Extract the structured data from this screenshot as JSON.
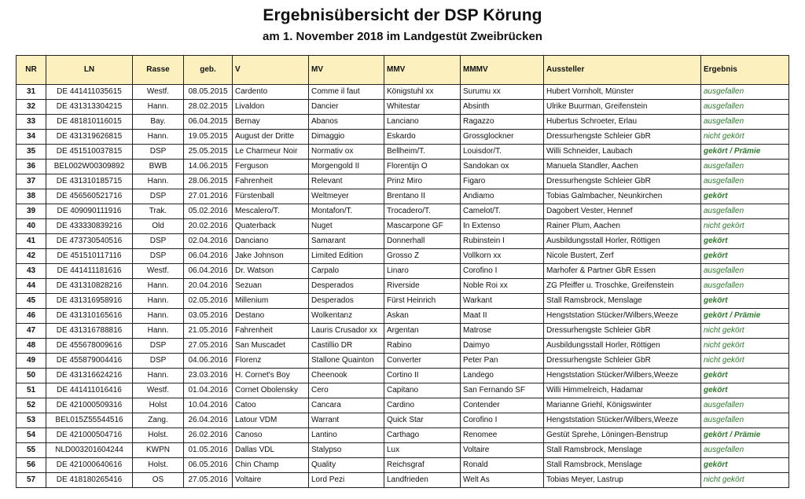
{
  "title": "Ergebnisübersicht der DSP Körung",
  "subtitle": "am 1. November 2018 im Landgestüt Zweibrücken",
  "accent_colors": {
    "header_fill": "#fdf0bf",
    "result_text": "#2e7a2e"
  },
  "columns": [
    "NR",
    "LN",
    "Rasse",
    "geb.",
    "V",
    "MV",
    "MMV",
    "MMMV",
    "Aussteller",
    "Ergebnis"
  ],
  "rows": [
    [
      "31",
      "DE 441411035615",
      "Westf.",
      "08.05.2015",
      "Cardento",
      "Comme il faut",
      "Königstuhl xx",
      "Surumu xx",
      "Hubert Vornholt, Münster",
      "ausgefallen"
    ],
    [
      "32",
      "DE 431313304215",
      "Hann.",
      "28.02.2015",
      "Livaldon",
      "Dancier",
      "Whitestar",
      "Absinth",
      "Ulrike Buurman, Greifenstein",
      "ausgefallen"
    ],
    [
      "33",
      "DE 481810116015",
      "Bay.",
      "06.04.2015",
      "Bernay",
      "Abanos",
      "Lanciano",
      "Ragazzo",
      "Hubertus Schroeter, Erlau",
      "ausgefallen"
    ],
    [
      "34",
      "DE 431319626815",
      "Hann.",
      "19.05.2015",
      "August der Dritte",
      "Dimaggio",
      "Eskardo",
      "Grossglockner",
      "Dressurhengste Schleier GbR",
      "nicht gekört"
    ],
    [
      "35",
      "DE 451510037815",
      "DSP",
      "25.05.2015",
      "Le Charmeur Noir",
      "Normativ ox",
      "Bellheim/T.",
      "Louisdor/T.",
      "Willi Schneider, Laubach",
      "gekört / Prämie"
    ],
    [
      "36",
      "BEL002W00309892",
      "BWB",
      "14.06.2015",
      "Ferguson",
      "Morgengold II",
      "Florentijn O",
      "Sandokan ox",
      "Manuela Standler, Aachen",
      "ausgefallen"
    ],
    [
      "37",
      "DE 431310185715",
      "Hann.",
      "28.06.2015",
      "Fahrenheit",
      "Relevant",
      "Prinz Miro",
      "Figaro",
      "Dressurhengste Schleier GbR",
      "ausgefallen"
    ],
    [
      "38",
      "DE 456560521716",
      "DSP",
      "27.01.2016",
      "Fürstenball",
      "Weltmeyer",
      "Brentano II",
      "Andiamo",
      "Tobias Galmbacher, Neunkirchen",
      "gekört"
    ],
    [
      "39",
      "DE 409090111916",
      "Trak.",
      "05.02.2016",
      "Mescalero/T.",
      "Montafon/T.",
      "Trocadero/T.",
      "Camelot/T.",
      "Dagobert Vester, Hennef",
      "ausgefallen"
    ],
    [
      "40",
      "DE 433330839216",
      "Old",
      "20.02.2016",
      "Quaterback",
      "Nuget",
      "Mascarpone GF",
      "In Extenso",
      "Rainer Plum, Aachen",
      "nicht gekört"
    ],
    [
      "41",
      "DE 473730540516",
      "DSP",
      "02.04.2016",
      "Danciano",
      "Samarant",
      "Donnerhall",
      "Rubinstein I",
      "Ausbildungsstall Horler, Röttigen",
      "gekört"
    ],
    [
      "42",
      "DE 451510117116",
      "DSP",
      "06.04.2016",
      "Jake Johnson",
      "Limited Edition",
      "Grosso Z",
      "Vollkorn xx",
      "Nicole Bustert, Zerf",
      "gekört"
    ],
    [
      "43",
      "DE 441411181616",
      "Westf.",
      "06.04.2016",
      "Dr. Watson",
      "Carpalo",
      "Linaro",
      "Corofino I",
      "Marhofer & Partner GbR Essen",
      "ausgefallen"
    ],
    [
      "44",
      "DE 431310828216",
      "Hann.",
      "20.04.2016",
      "Sezuan",
      "Desperados",
      "Riverside",
      "Noble Roi xx",
      "ZG Pfeiffer u. Troschke, Greifenstein",
      "ausgefallen"
    ],
    [
      "45",
      "DE 431316958916",
      "Hann.",
      "02.05.2016",
      "Millenium",
      "Desperados",
      "Fürst Heinrich",
      "Warkant",
      "Stall Ramsbrock, Menslage",
      "gekört"
    ],
    [
      "46",
      "DE 431310165616",
      "Hann.",
      "03.05.2016",
      "Destano",
      "Wolkentanz",
      "Askan",
      "Maat II",
      "Hengststation Stücker/Wilbers,Weeze",
      "gekört / Prämie"
    ],
    [
      "47",
      "DE 431316788816",
      "Hann.",
      "21.05.2016",
      "Fahrenheit",
      "Lauris Crusador xx",
      "Argentan",
      "Matrose",
      "Dressurhengste Schleier GbR",
      "nicht gekört"
    ],
    [
      "48",
      "DE 455678009616",
      "DSP",
      "27.05.2016",
      "San Muscadet",
      "Castillio DR",
      "Rabino",
      "Daimyo",
      "Ausbildungsstall Horler, Röttigen",
      "nicht gekört"
    ],
    [
      "49",
      "DE 455879004416",
      "DSP",
      "04.06.2016",
      "Florenz",
      "Stallone Quainton",
      "Converter",
      "Peter Pan",
      "Dressurhengste Schleier GbR",
      "nicht gekört"
    ],
    [
      "50",
      "DE 431316624216",
      "Hann.",
      "23.03.2016",
      "H. Cornet's Boy",
      "Cheenook",
      "Cortino II",
      "Landego",
      "Hengststation Stücker/Wilbers,Weeze",
      "gekört"
    ],
    [
      "51",
      "DE 441411016416",
      "Westf.",
      "01.04.2016",
      "Cornet Obolensky",
      "Cero",
      "Capitano",
      "San Fernando SF",
      "Willi Himmelreich, Hadamar",
      "gekört"
    ],
    [
      "52",
      "DE 421000509316",
      "Holst",
      "10.04.2016",
      "Catoo",
      "Cancara",
      "Cardino",
      "Contender",
      "Marianne Griehl, Königswinter",
      "ausgefallen"
    ],
    [
      "53",
      "BEL015Z55544516",
      "Zang.",
      "26.04.2016",
      "Latour VDM",
      "Warrant",
      "Quick Star",
      "Corofino I",
      "Hengststation Stücker/Wilbers,Weeze",
      "ausgefallen"
    ],
    [
      "54",
      "DE 421000504716",
      "Holst.",
      "26.02.2016",
      "Canoso",
      "Lantino",
      "Carthago",
      "Renomee",
      "Gestüt Sprehe, Löningen-Benstrup",
      "gekört / Prämie"
    ],
    [
      "55",
      "NLD003201604244",
      "KWPN",
      "01.05.2016",
      "Dallas VDL",
      "Stalypso",
      "Lux",
      "Voltaire",
      "Stall Ramsbrock, Menslage",
      "ausgefallen"
    ],
    [
      "56",
      "DE 421000640616",
      "Holst.",
      "06.05.2016",
      "Chin Champ",
      "Quality",
      "Reichsgraf",
      "Ronald",
      "Stall Ramsbrock, Menslage",
      "gekört"
    ],
    [
      "57",
      "DE 418180265416",
      "OS",
      "27.05.2016",
      "Voltaire",
      "Lord Pezi",
      "Landfrieden",
      "Welt As",
      "Tobias Meyer, Lastrup",
      "nicht gekört"
    ]
  ]
}
